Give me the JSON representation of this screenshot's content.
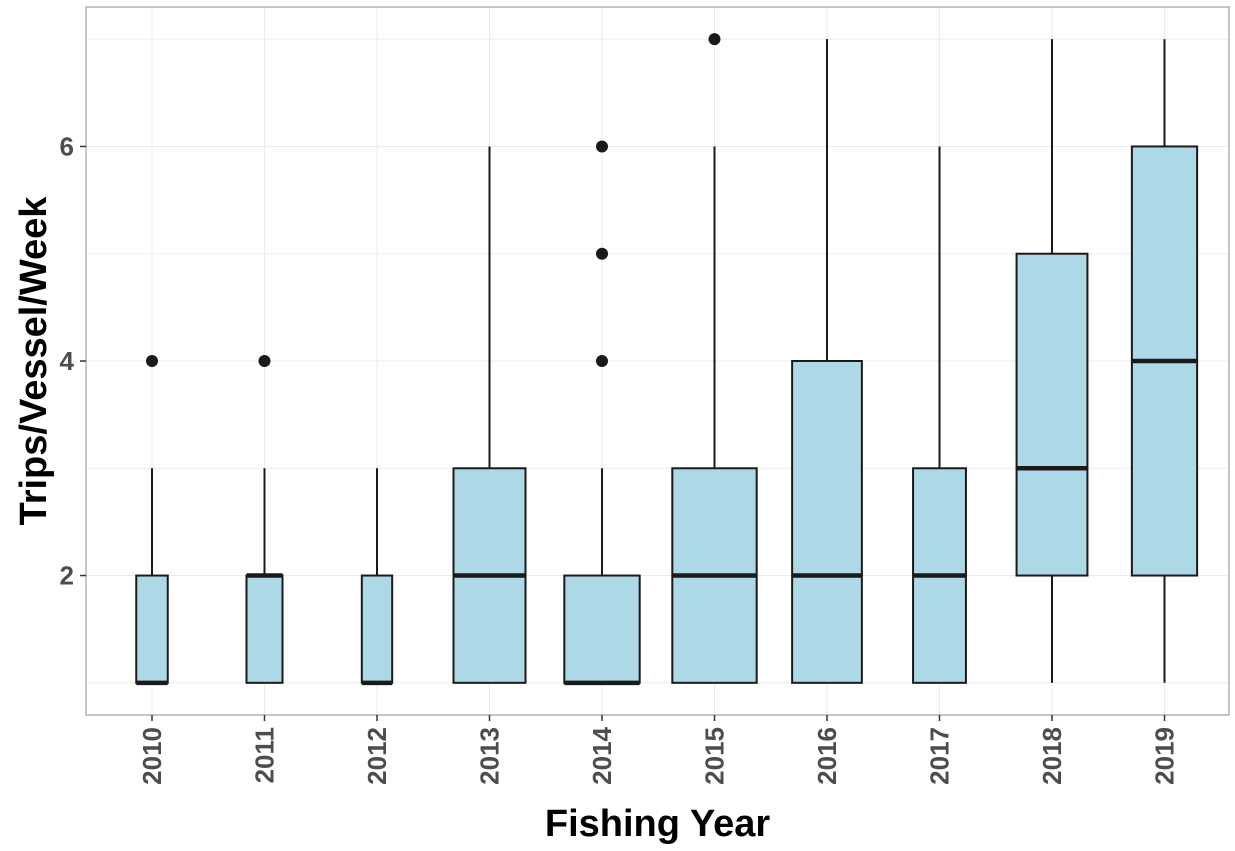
{
  "chart_data": {
    "type": "boxplot",
    "xlabel": "Fishing Year",
    "ylabel": "Trips/Vessel/Week",
    "categories": [
      "2010",
      "2011",
      "2012",
      "2013",
      "2014",
      "2015",
      "2016",
      "2017",
      "2018",
      "2019"
    ],
    "y_ticks": [
      2,
      4,
      6
    ],
    "ylim": [
      0.7,
      7.3
    ],
    "grid": true,
    "box_fill": "#add8e6",
    "box_stroke": "#1a1a1a",
    "boxes": [
      {
        "category": "2010",
        "min": 1,
        "q1": 1,
        "median": 1,
        "q3": 2,
        "max": 3,
        "outliers": [
          4
        ],
        "relative_width": 0.28
      },
      {
        "category": "2011",
        "min": 1,
        "q1": 1,
        "median": 2,
        "q3": 2,
        "max": 3,
        "outliers": [
          4
        ],
        "relative_width": 0.32
      },
      {
        "category": "2012",
        "min": 1,
        "q1": 1,
        "median": 1,
        "q3": 2,
        "max": 3,
        "outliers": [],
        "relative_width": 0.27
      },
      {
        "category": "2013",
        "min": 1,
        "q1": 1,
        "median": 2,
        "q3": 3,
        "max": 6,
        "outliers": [],
        "relative_width": 0.64
      },
      {
        "category": "2014",
        "min": 1,
        "q1": 1,
        "median": 1,
        "q3": 2,
        "max": 3,
        "outliers": [
          4,
          5,
          6
        ],
        "relative_width": 0.67
      },
      {
        "category": "2015",
        "min": 1,
        "q1": 1,
        "median": 2,
        "q3": 3,
        "max": 6,
        "outliers": [
          7
        ],
        "relative_width": 0.75
      },
      {
        "category": "2016",
        "min": 1,
        "q1": 1,
        "median": 2,
        "q3": 4,
        "max": 7,
        "outliers": [],
        "relative_width": 0.62
      },
      {
        "category": "2017",
        "min": 1,
        "q1": 1,
        "median": 2,
        "q3": 3,
        "max": 6,
        "outliers": [],
        "relative_width": 0.47
      },
      {
        "category": "2018",
        "min": 1,
        "q1": 2,
        "median": 3,
        "q3": 5,
        "max": 7,
        "outliers": [],
        "relative_width": 0.63
      },
      {
        "category": "2019",
        "min": 1,
        "q1": 2,
        "median": 4,
        "q3": 6,
        "max": 7,
        "outliers": [],
        "relative_width": 0.58
      }
    ]
  }
}
